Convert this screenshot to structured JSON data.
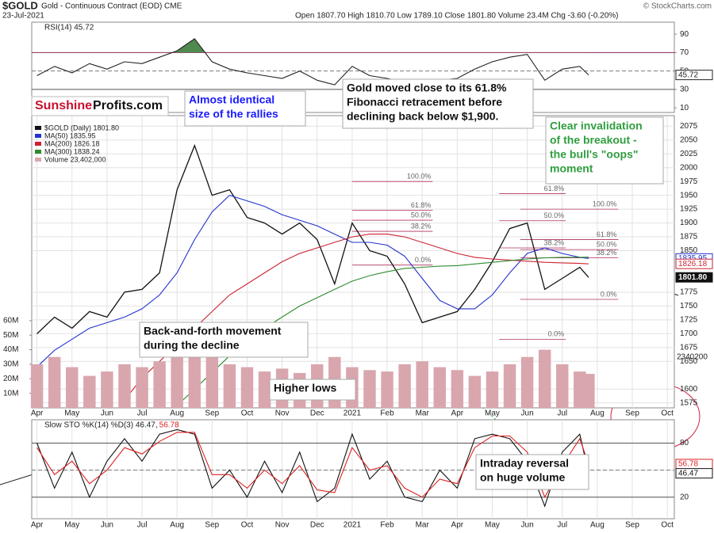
{
  "header": {
    "symbol": "$GOLD",
    "description": "Gold - Continuous Contract (EOD) CME",
    "date": "23-Jul-2021",
    "quote": "Open 1807.70  High 1810.70  Low 1789.10  Close 1801.80  Volume 23.4M  Chg -3.60 (-0.20%)",
    "source": "© StockCharts.com",
    "watermark_1": "Sunshine",
    "watermark_2": "Profits.com",
    "volume_tag": "2340200"
  },
  "chart_data": [
    {
      "type": "line",
      "title": "RSI(14) 45.72",
      "x": [
        0,
        0.5,
        1,
        1.5,
        2,
        2.5,
        3,
        3.5,
        4,
        4.5,
        5,
        5.5,
        6,
        6.5,
        7,
        7.5,
        8,
        8.5,
        9,
        9.5,
        10,
        10.5,
        11,
        11.5,
        12,
        12.5,
        13,
        13.5,
        14,
        14.5,
        15,
        15.5,
        15.75
      ],
      "series": [
        {
          "color": "#222222",
          "values": [
            45,
            55,
            48,
            58,
            52,
            60,
            58,
            65,
            72,
            85,
            60,
            52,
            48,
            45,
            42,
            50,
            40,
            35,
            55,
            45,
            42,
            38,
            32,
            40,
            42,
            52,
            60,
            65,
            68,
            40,
            52,
            55,
            45.72
          ]
        }
      ],
      "xlim": [
        -0.15,
        18.2
      ],
      "ylim": [
        5,
        103
      ],
      "yticks": [
        10,
        30,
        50,
        70,
        90
      ],
      "reference_lines": [
        {
          "value": 70,
          "color": "#8b2252",
          "style": "solid"
        },
        {
          "value": 50,
          "color": "#777777",
          "style": "dashed"
        },
        {
          "value": 30,
          "color": "#555555",
          "style": "solid"
        }
      ],
      "fill_above": {
        "value": 70,
        "color": "#4f8a4f"
      },
      "markers": [
        {
          "value": 45.72,
          "label": "45.72",
          "color": "#222222"
        }
      ]
    },
    {
      "type": "line",
      "x": [
        0,
        0.5,
        1,
        1.5,
        2,
        2.5,
        3,
        3.5,
        4,
        4.5,
        5,
        5.5,
        6,
        6.5,
        7,
        7.5,
        8,
        8.5,
        9,
        9.5,
        10,
        10.5,
        11,
        11.5,
        12,
        12.5,
        13,
        13.5,
        14,
        14.5,
        15,
        15.5,
        15.75
      ],
      "series": [
        {
          "name": "$GOLD (Daily) 1801.80",
          "color": "#111111",
          "values": [
            1700,
            1730,
            1710,
            1740,
            1730,
            1775,
            1780,
            1810,
            1960,
            2040,
            1950,
            1960,
            1910,
            1900,
            1880,
            1900,
            1870,
            1790,
            1900,
            1850,
            1840,
            1790,
            1720,
            1730,
            1740,
            1780,
            1830,
            1890,
            1900,
            1780,
            1800,
            1820,
            1801.8
          ]
        },
        {
          "name": "MA(50) 1835.95",
          "color": "#2233cc",
          "values": [
            1640,
            1670,
            1690,
            1710,
            1720,
            1730,
            1745,
            1770,
            1810,
            1870,
            1920,
            1950,
            1940,
            1930,
            1915,
            1905,
            1895,
            1880,
            1865,
            1865,
            1860,
            1840,
            1800,
            1760,
            1745,
            1745,
            1770,
            1810,
            1845,
            1855,
            1845,
            1838,
            1835.95
          ]
        },
        {
          "name": "MA(200) 1826.18",
          "color": "#cc2233",
          "values": [
            null,
            null,
            null,
            null,
            null,
            1580,
            1620,
            1650,
            1680,
            1710,
            1740,
            1770,
            1790,
            1810,
            1830,
            1845,
            1855,
            1865,
            1875,
            1880,
            1880,
            1875,
            1865,
            1855,
            1845,
            1838,
            1835,
            1833,
            1831,
            1829,
            1828,
            1827,
            1826.18
          ]
        },
        {
          "name": "MA(300) 1838.24",
          "color": "#2e8b2e",
          "values": [
            null,
            null,
            null,
            null,
            null,
            null,
            null,
            null,
            1570,
            1600,
            1630,
            1660,
            1685,
            1710,
            1730,
            1750,
            1765,
            1780,
            1795,
            1805,
            1812,
            1818,
            1820,
            1822,
            1823,
            1826,
            1829,
            1832,
            1835,
            1837,
            1838,
            1838,
            1838.24
          ]
        },
        {
          "name": "Volume 23,402,000",
          "type": "bar",
          "axis": "y2",
          "color": "#d9a6ae",
          "values": [
            30000000,
            35000000,
            28000000,
            22000000,
            25000000,
            30000000,
            28000000,
            32000000,
            40000000,
            45000000,
            38000000,
            30000000,
            28000000,
            25000000,
            27000000,
            24000000,
            30000000,
            35000000,
            28000000,
            26000000,
            25000000,
            30000000,
            32000000,
            28000000,
            26000000,
            22000000,
            25000000,
            30000000,
            35000000,
            40000000,
            30000000,
            25000000,
            23402000
          ]
        }
      ],
      "xlim": [
        -0.15,
        18.2
      ],
      "xticks": [
        {
          "value": 0,
          "label": "Apr"
        },
        {
          "value": 1,
          "label": "May"
        },
        {
          "value": 2,
          "label": "Jun"
        },
        {
          "value": 3,
          "label": "Jul"
        },
        {
          "value": 4,
          "label": "Aug"
        },
        {
          "value": 5,
          "label": "Sep"
        },
        {
          "value": 6,
          "label": "Oct"
        },
        {
          "value": 7,
          "label": "Nov"
        },
        {
          "value": 8,
          "label": "Dec"
        },
        {
          "value": 9,
          "label": "2021"
        },
        {
          "value": 10,
          "label": "Feb"
        },
        {
          "value": 11,
          "label": "Mar"
        },
        {
          "value": 12,
          "label": "Apr"
        },
        {
          "value": 13,
          "label": "May"
        },
        {
          "value": 14,
          "label": "Jun"
        },
        {
          "value": 15,
          "label": "Jul"
        },
        {
          "value": 16,
          "label": "Aug"
        },
        {
          "value": 17,
          "label": "Sep"
        },
        {
          "value": 18,
          "label": "Oct"
        }
      ],
      "ylim": [
        1566,
        2094
      ],
      "yticks": [
        1575,
        1600,
        1650,
        1675,
        1700,
        1725,
        1750,
        1775,
        1850,
        1875,
        1900,
        1925,
        1950,
        1975,
        2000,
        2025,
        2050,
        2075
      ],
      "y2lim": [
        0,
        201000000
      ],
      "y2ticks": [
        {
          "value": 10000000,
          "label": "10M"
        },
        {
          "value": 20000000,
          "label": "20M"
        },
        {
          "value": 30000000,
          "label": "30M"
        },
        {
          "value": 40000000,
          "label": "40M"
        },
        {
          "value": 50000000,
          "label": "50M"
        },
        {
          "value": 60000000,
          "label": "60M"
        }
      ],
      "grid": true,
      "markers": [
        {
          "value": 1835.95,
          "label": "1835.95",
          "color": "#2233cc"
        },
        {
          "value": 1826.18,
          "label": "1826.18",
          "color": "#cc2233"
        },
        {
          "value": 1801.8,
          "label": "1801.80",
          "color": "#111111"
        }
      ],
      "fibonacci": [
        {
          "x": [
            9.0,
            11.3
          ],
          "levels": [
            {
              "label": "100.0%",
              "value": 1975
            },
            {
              "label": "61.8%",
              "value": 1923
            },
            {
              "label": "50.0%",
              "value": 1905
            },
            {
              "label": "38.2%",
              "value": 1885
            },
            {
              "label": "0.0%",
              "value": 1824
            }
          ]
        },
        {
          "x": [
            13.2,
            15.1
          ],
          "levels": [
            {
              "label": "61.8%",
              "value": 1953
            },
            {
              "label": "50.0%",
              "value": 1904
            },
            {
              "label": "38.2%",
              "value": 1855
            },
            {
              "label": "0.0%",
              "value": 1690
            }
          ]
        },
        {
          "x": [
            13.8,
            16.6
          ],
          "levels": [
            {
              "label": "100.0%",
              "value": 1925
            },
            {
              "label": "61.8%",
              "value": 1870
            },
            {
              "label": "50.0%",
              "value": 1852
            },
            {
              "label": "38.2%",
              "value": 1837
            },
            {
              "label": "0.0%",
              "value": 1762
            }
          ]
        }
      ],
      "annotations": [
        {
          "lines": [
            "Almost identical",
            "size of the rallies"
          ],
          "color": "#1a1aff"
        },
        {
          "lines": [
            "Gold moved close to its 61.8%",
            "Fibonacci retracement before",
            "declining back below $1,900."
          ],
          "color": "#111111"
        },
        {
          "lines": [
            "Clear invalidation",
            "of the breakout -",
            "the bull's \"oops\"",
            "moment"
          ],
          "color": "#2e9e3e"
        },
        {
          "lines": [
            "Back-and-forth movement",
            "during the decline"
          ],
          "color": "#111111"
        },
        {
          "lines": [
            "Higher lows"
          ],
          "color": "#111111"
        }
      ]
    },
    {
      "type": "line",
      "title": "Slow STO %K(14) %D(3) 46.47,",
      "title_d": "56.78",
      "x": [
        0,
        0.5,
        1,
        1.5,
        2,
        2.5,
        3,
        3.5,
        4,
        4.5,
        5,
        5.5,
        6,
        6.5,
        7,
        7.5,
        8,
        8.5,
        9,
        9.5,
        10,
        10.5,
        11,
        11.5,
        12,
        12.5,
        13,
        13.5,
        14,
        14.5,
        15,
        15.5,
        15.75
      ],
      "series": [
        {
          "color": "#111111",
          "values": [
            80,
            30,
            70,
            20,
            60,
            85,
            60,
            90,
            95,
            90,
            30,
            50,
            20,
            60,
            25,
            70,
            15,
            30,
            90,
            40,
            60,
            20,
            15,
            50,
            30,
            85,
            90,
            85,
            60,
            10,
            70,
            90,
            46.47
          ]
        },
        {
          "color": "#dd2222",
          "values": [
            75,
            45,
            60,
            35,
            50,
            75,
            68,
            82,
            92,
            92,
            45,
            45,
            30,
            50,
            35,
            55,
            28,
            25,
            75,
            50,
            55,
            30,
            20,
            40,
            35,
            75,
            88,
            88,
            70,
            20,
            55,
            85,
            56.78
          ]
        }
      ],
      "xlim": [
        -0.15,
        18.2
      ],
      "xticks": [
        {
          "value": 0,
          "label": "Apr"
        },
        {
          "value": 1,
          "label": "May"
        },
        {
          "value": 2,
          "label": "Jun"
        },
        {
          "value": 3,
          "label": "Jul"
        },
        {
          "value": 4,
          "label": "Aug"
        },
        {
          "value": 5,
          "label": "Sep"
        },
        {
          "value": 6,
          "label": "Oct"
        },
        {
          "value": 7,
          "label": "Nov"
        },
        {
          "value": 8,
          "label": "Dec"
        },
        {
          "value": 9,
          "label": "2021"
        },
        {
          "value": 10,
          "label": "Feb"
        },
        {
          "value": 11,
          "label": "Mar"
        },
        {
          "value": 12,
          "label": "Apr"
        },
        {
          "value": 13,
          "label": "May"
        },
        {
          "value": 14,
          "label": "Jun"
        },
        {
          "value": 15,
          "label": "Jul"
        },
        {
          "value": 16,
          "label": "Aug"
        },
        {
          "value": 17,
          "label": "Sep"
        },
        {
          "value": 18,
          "label": "Oct"
        }
      ],
      "ylim": [
        -4,
        106
      ],
      "yticks": [
        20,
        50,
        80
      ],
      "grid": true,
      "reference_lines": [
        {
          "value": 80,
          "color": "#555555",
          "style": "solid"
        },
        {
          "value": 50,
          "color": "#777777",
          "style": "dashed"
        },
        {
          "value": 20,
          "color": "#555555",
          "style": "solid"
        }
      ],
      "markers": [
        {
          "value": 56.78,
          "label": "56.78",
          "color": "#dd2222"
        },
        {
          "value": 46.47,
          "label": "46.47",
          "color": "#111111"
        }
      ],
      "annotations": [
        {
          "lines": [
            "Intraday reversal",
            "on huge volume"
          ],
          "color": "#111111"
        }
      ]
    }
  ]
}
